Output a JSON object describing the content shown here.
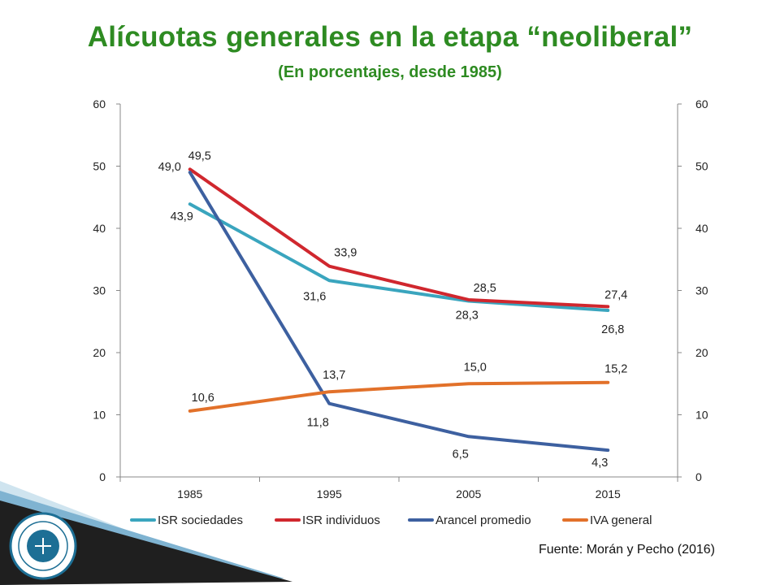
{
  "title": "Alícuotas generales en la etapa “neoliberal”",
  "subtitle": "(En porcentajes, desde 1985)",
  "source": "Fuente: Morán y Pecho (2016)",
  "chart_data": {
    "type": "line",
    "x": [
      "1985",
      "1995",
      "2005",
      "2015"
    ],
    "series": [
      {
        "name": "ISR sociedades",
        "color": "#3aa5be",
        "values": [
          43.9,
          31.6,
          28.3,
          26.8
        ],
        "labels": [
          "43,9",
          "31,6",
          "28,3",
          "26,8"
        ]
      },
      {
        "name": "ISR individuos",
        "color": "#d0272e",
        "values": [
          49.5,
          33.9,
          28.5,
          27.4
        ],
        "labels": [
          "49,5",
          "33,9",
          "28,5",
          "27,4"
        ]
      },
      {
        "name": "Arancel promedio",
        "color": "#3d60a0",
        "values": [
          49.0,
          11.8,
          6.5,
          4.3
        ],
        "labels": [
          "49,0",
          "11,8",
          "6,5",
          "4,3"
        ]
      },
      {
        "name": "IVA general",
        "color": "#e2712a",
        "values": [
          10.6,
          13.7,
          15.0,
          15.2
        ],
        "labels": [
          "10,6",
          "13,7",
          "15,0",
          "15,2"
        ]
      }
    ],
    "yticks": [
      "0",
      "10",
      "20",
      "30",
      "40",
      "50",
      "60"
    ],
    "ylim": [
      0,
      60
    ],
    "secondary_yticks": [
      "0",
      "10",
      "20",
      "30",
      "40",
      "50",
      "60"
    ],
    "grid": false,
    "legend": "bottom"
  }
}
